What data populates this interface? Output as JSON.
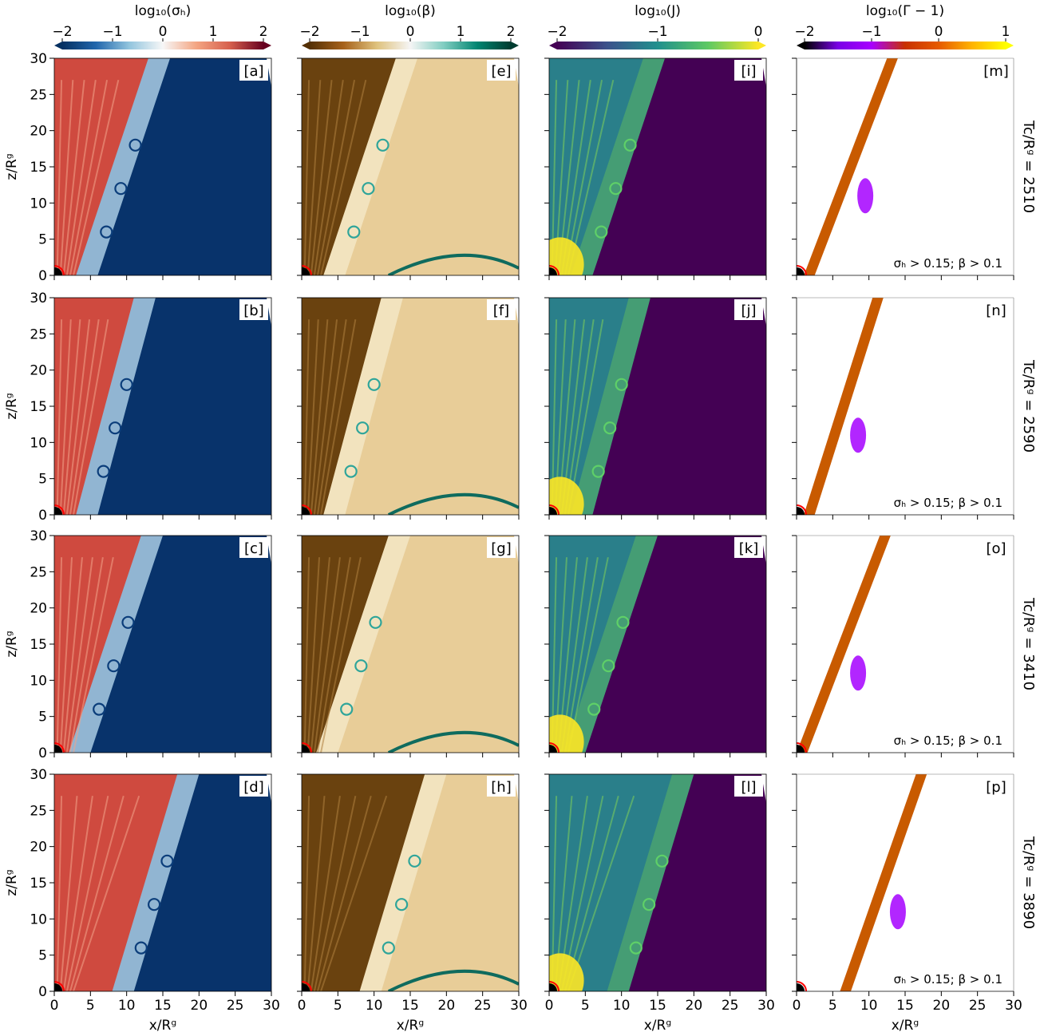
{
  "figure": {
    "colorbars": [
      {
        "label": "log₁₀(σₕ)",
        "ticks": [
          "−2",
          "−1",
          "0",
          "1",
          "2"
        ],
        "range": [
          -2,
          2
        ],
        "colors": [
          "#053061",
          "#2166ac",
          "#92c5de",
          "#f7f7f7",
          "#f4a582",
          "#d6604d",
          "#67001f"
        ],
        "name": "sigma"
      },
      {
        "label": "log₁₀(β)",
        "ticks": [
          "−2",
          "−1",
          "0",
          "1",
          "2"
        ],
        "range": [
          -2,
          2
        ],
        "colors": [
          "#543005",
          "#a6611a",
          "#dfc27d",
          "#f5f5f5",
          "#80cdc1",
          "#018571",
          "#003c30"
        ],
        "name": "beta"
      },
      {
        "label": "log₁₀(J)",
        "ticks": [
          "−2",
          "−1",
          "0"
        ],
        "range": [
          -2,
          0
        ],
        "colors": [
          "#440154",
          "#3b528b",
          "#21908d",
          "#5dc963",
          "#fde725"
        ],
        "name": "current"
      },
      {
        "label": "log₁₀(Γ − 1)",
        "ticks": [
          "−2",
          "−1",
          "0",
          "1"
        ],
        "range": [
          -2,
          1
        ],
        "colors": [
          "#000000",
          "#7a00e6",
          "#a800ff",
          "#c83200",
          "#e65a00",
          "#ffb400",
          "#ffff00"
        ],
        "name": "lorentz"
      }
    ],
    "panel_tags": [
      [
        "[a]",
        "[e]",
        "[i]",
        "[m]"
      ],
      [
        "[b]",
        "[f]",
        "[j]",
        "[n]"
      ],
      [
        "[c]",
        "[g]",
        "[k]",
        "[o]"
      ],
      [
        "[d]",
        "[h]",
        "[l]",
        "[p]"
      ]
    ],
    "row_labels": [
      "Tc/Rᵍ = 2510",
      "Tc/Rᵍ = 2590",
      "Tc/Rᵍ = 3410",
      "Tc/Rᵍ = 3890"
    ],
    "mask_label": "σₕ > 0.15; β > 0.1",
    "xlabel": "x/Rᵍ",
    "ylabel": "z/Rᵍ"
  },
  "chart_data": {
    "type": "heatmap",
    "layout": "4 rows x 4 columns of 2D field maps",
    "columns": [
      "log₁₀(σₕ)",
      "log₁₀(β)",
      "log₁₀(J)",
      "log₁₀(Γ − 1)"
    ],
    "rows_time": [
      2510,
      2590,
      3410,
      3890
    ],
    "xlim": [
      0,
      30
    ],
    "ylim": [
      0,
      30
    ],
    "xticks": [
      "0",
      "5",
      "10",
      "15",
      "20",
      "25",
      "30"
    ],
    "yticks": [
      "0",
      "5",
      "10",
      "15",
      "20",
      "25",
      "30"
    ],
    "xlabel": "x/Rᵍ",
    "ylabel": "z/Rᵍ",
    "jet_boundary_x_at_top": [
      13,
      11,
      12,
      17
    ],
    "jet_boundary_x_at_base": [
      3,
      3,
      2,
      8
    ]
  }
}
